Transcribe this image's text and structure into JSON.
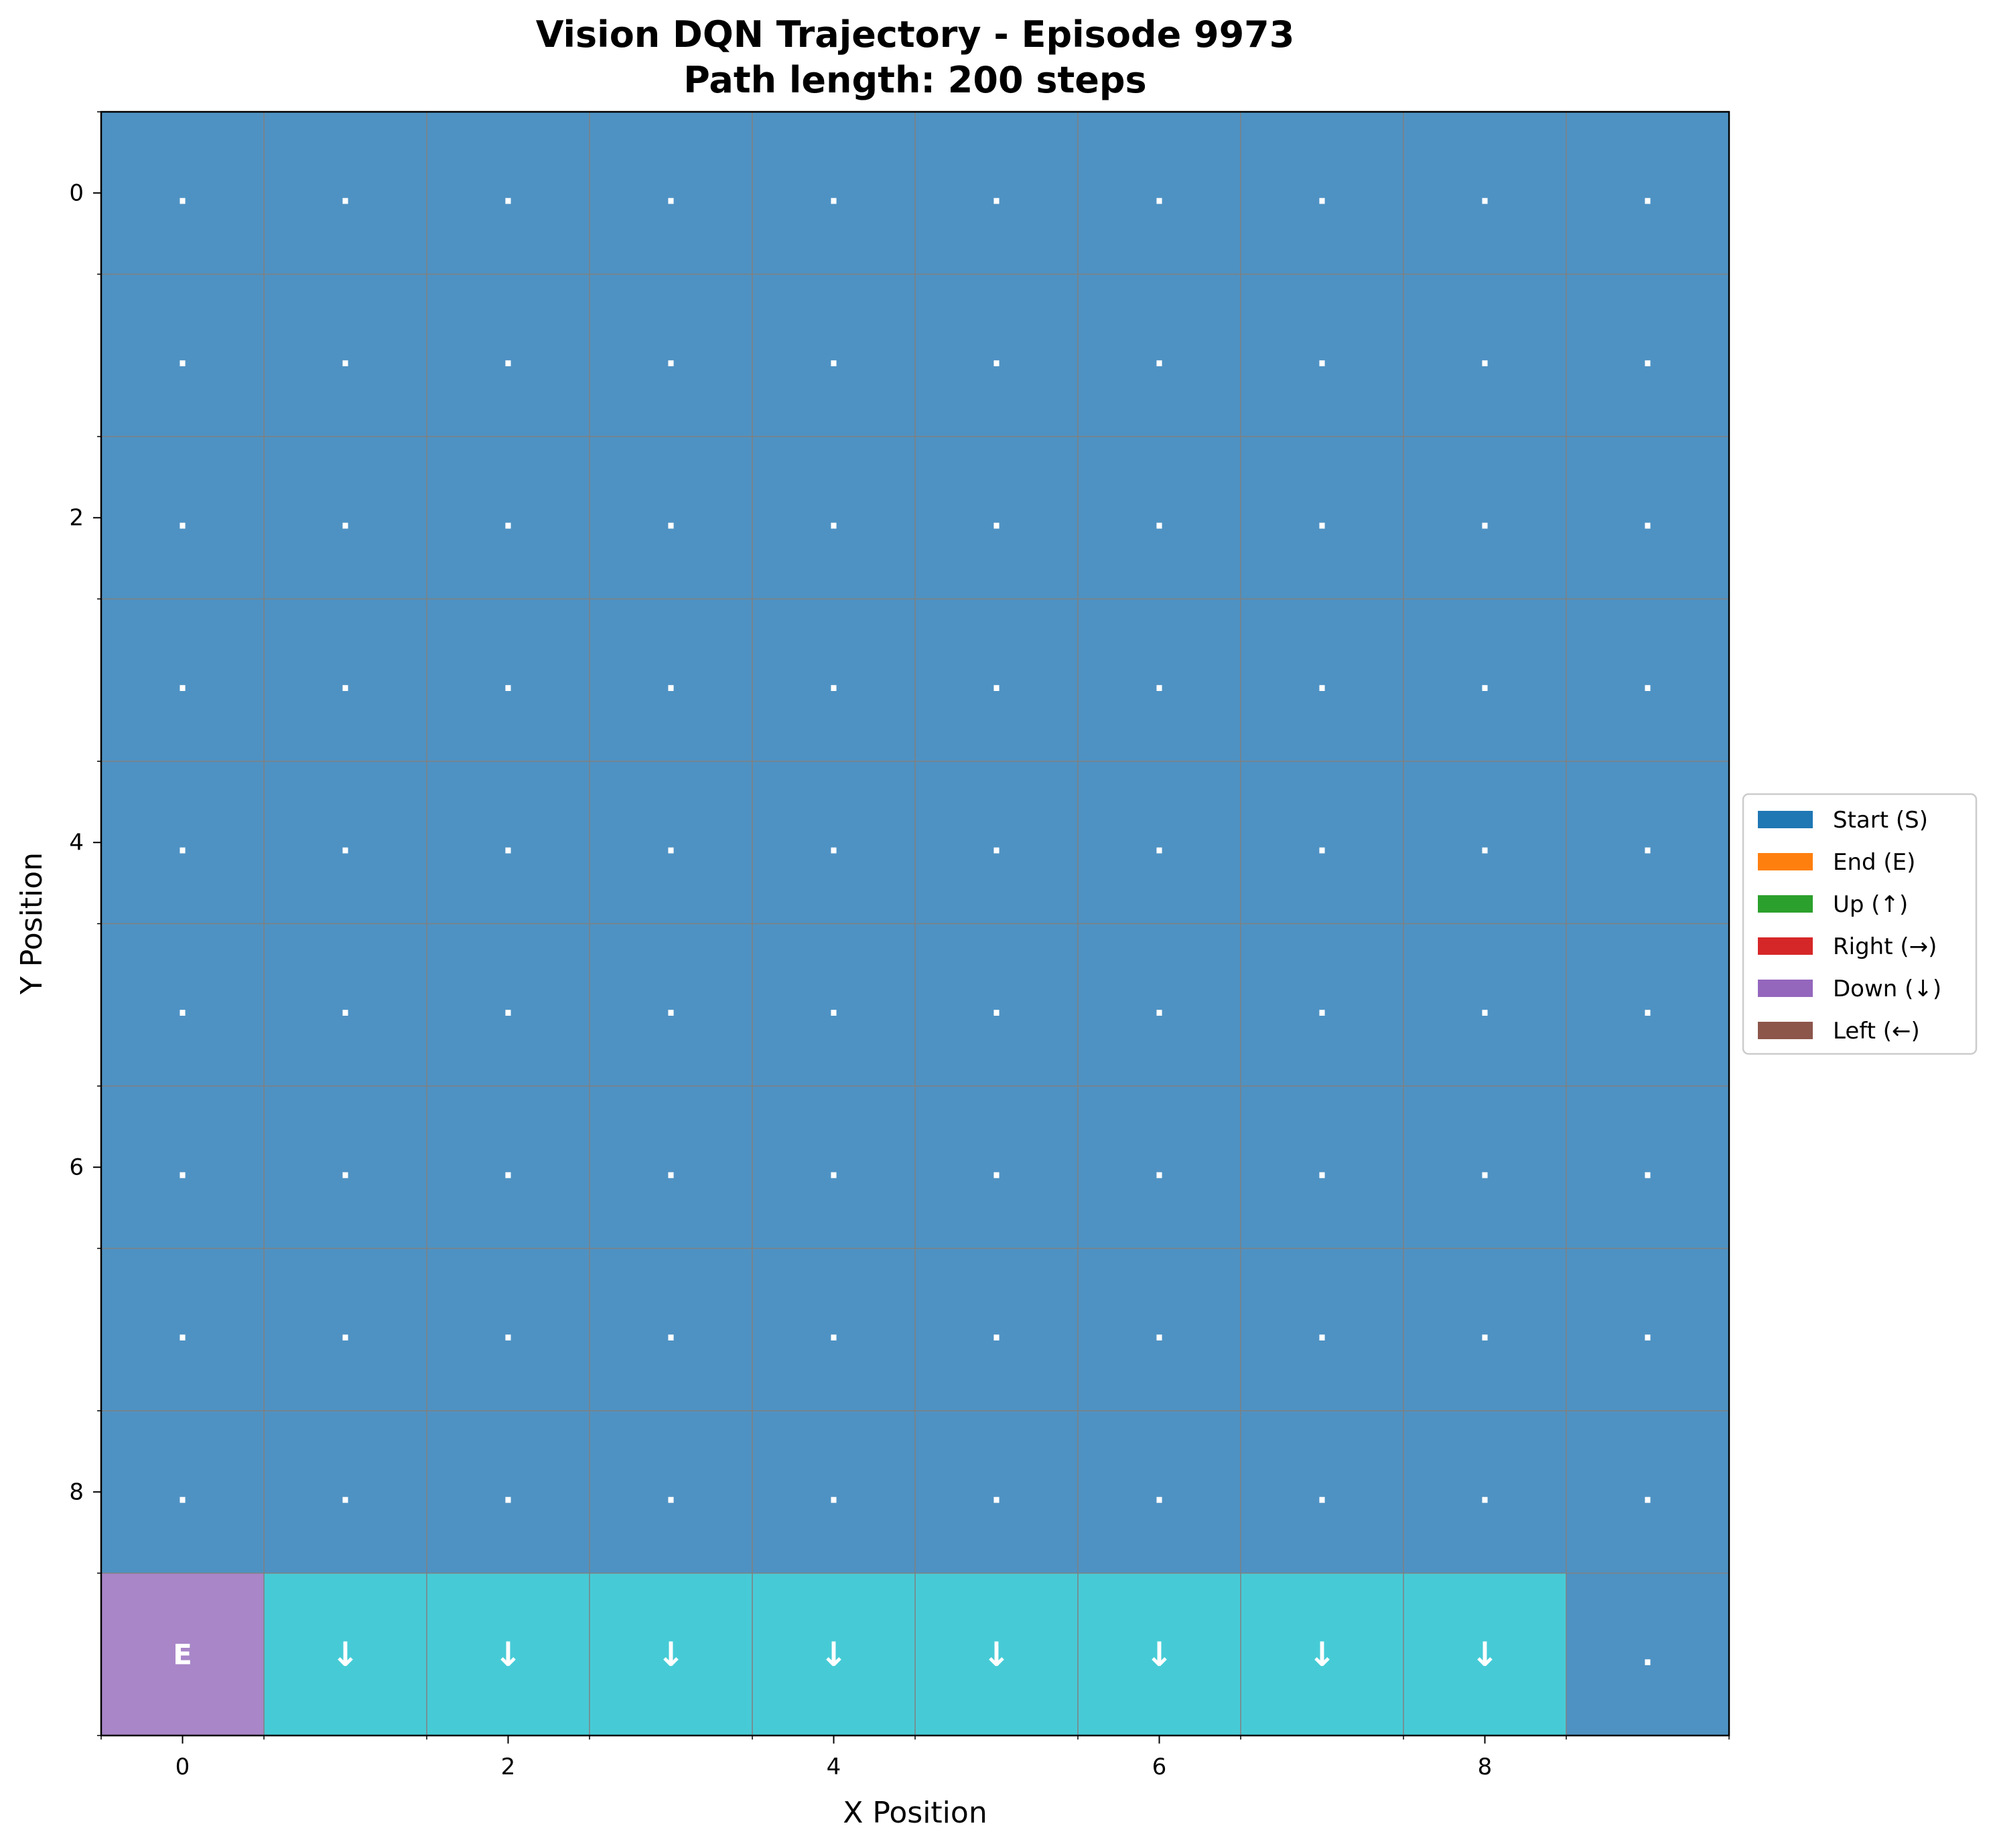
{
  "chart_data": {
    "type": "heatmap",
    "title": "Vision DQN Trajectory - Episode 9973",
    "subtitle": "Path length: 200 steps",
    "xlabel": "X Position",
    "ylabel": "Y Position",
    "grid_size": [
      10,
      10
    ],
    "xlim": [
      -0.5,
      9.5
    ],
    "ylim": [
      9.5,
      -0.5
    ],
    "y_axis_inverted": true,
    "x_ticks": [
      0,
      2,
      4,
      6,
      8
    ],
    "y_ticks": [
      0,
      2,
      4,
      6,
      8
    ],
    "x_tick_labels": [
      "0",
      "2",
      "4",
      "6",
      "8"
    ],
    "y_tick_labels": [
      "0",
      "2",
      "4",
      "6",
      "8"
    ],
    "grid": true,
    "legend_position": "center-right outside",
    "legend": [
      {
        "label": "Start (S)",
        "color": "#1f77b4"
      },
      {
        "label": "End (E)",
        "color": "#ff7f0e"
      },
      {
        "label": "Up (↑)",
        "color": "#2ca02c"
      },
      {
        "label": "Right (→)",
        "color": "#d62728"
      },
      {
        "label": "Down (↓)",
        "color": "#9467bd"
      },
      {
        "label": "Left (←)",
        "color": "#8c564b"
      }
    ],
    "cell_colors": {
      "default": "#4e92c3",
      "end": "#a886c8",
      "path": "#46cbd6"
    },
    "default_symbol": ".",
    "cells": [
      {
        "x": 0,
        "y": 9,
        "symbol": "E",
        "kind": "end"
      },
      {
        "x": 1,
        "y": 9,
        "symbol": "↓",
        "kind": "path"
      },
      {
        "x": 2,
        "y": 9,
        "symbol": "↓",
        "kind": "path"
      },
      {
        "x": 3,
        "y": 9,
        "symbol": "↓",
        "kind": "path"
      },
      {
        "x": 4,
        "y": 9,
        "symbol": "↓",
        "kind": "path"
      },
      {
        "x": 5,
        "y": 9,
        "symbol": "↓",
        "kind": "path"
      },
      {
        "x": 6,
        "y": 9,
        "symbol": "↓",
        "kind": "path"
      },
      {
        "x": 7,
        "y": 9,
        "symbol": "↓",
        "kind": "path"
      },
      {
        "x": 8,
        "y": 9,
        "symbol": "↓",
        "kind": "path"
      }
    ]
  }
}
